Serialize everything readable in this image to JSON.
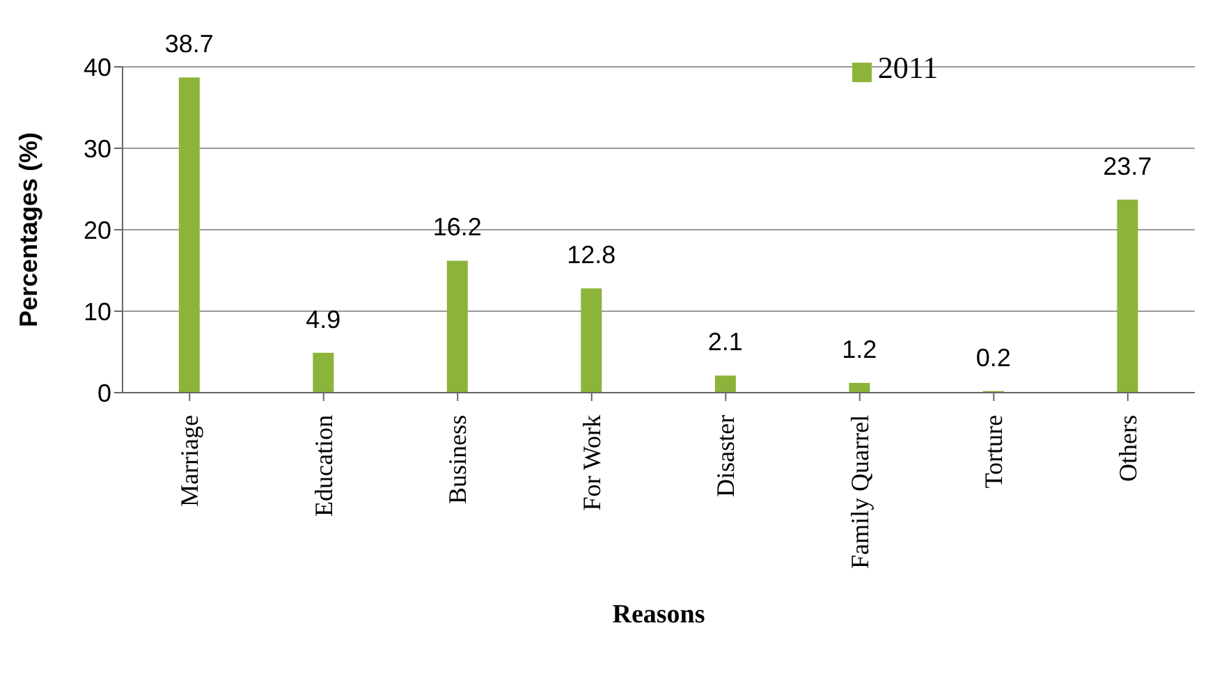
{
  "chart_data": {
    "type": "bar",
    "xlabel": "Reasons",
    "ylabel": "Percentages (%)",
    "categories": [
      "Marriage",
      "Education",
      "Business",
      "For Work",
      "Disaster",
      "Family Quarrel",
      "Torture",
      "Others"
    ],
    "series": [
      {
        "name": "2011",
        "color": "#8db43a",
        "values": [
          38.7,
          4.9,
          16.2,
          12.8,
          2.1,
          1.2,
          0.2,
          23.7
        ]
      }
    ],
    "ylim": [
      0,
      40
    ],
    "yticks": [
      0,
      10,
      20,
      30,
      40
    ],
    "grid": "y",
    "legend": "top right",
    "data_labels": true
  }
}
